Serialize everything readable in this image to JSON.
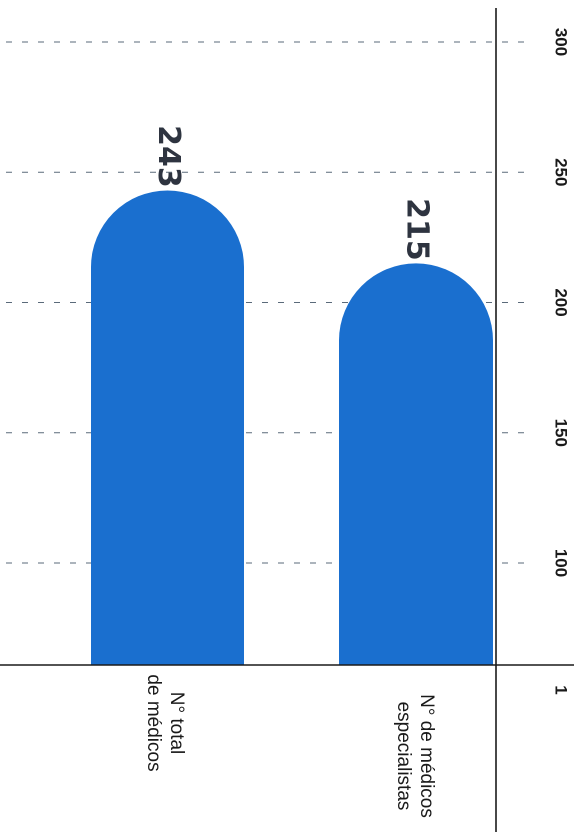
{
  "chart_data": {
    "type": "bar",
    "orientation": "horizontal",
    "categories": [
      [
        "N° total",
        "de médicos"
      ],
      [
        "N° de médicos",
        "especialistas"
      ]
    ],
    "values": [
      243,
      215
    ],
    "value_labels": [
      "243",
      "215"
    ],
    "x_ticks": [
      "1",
      "100",
      "150",
      "200",
      "250",
      "300"
    ],
    "xlim": [
      1,
      300
    ],
    "grid": true,
    "bar_color": "#1a6fcf",
    "title": "",
    "xlabel": "",
    "ylabel": ""
  }
}
